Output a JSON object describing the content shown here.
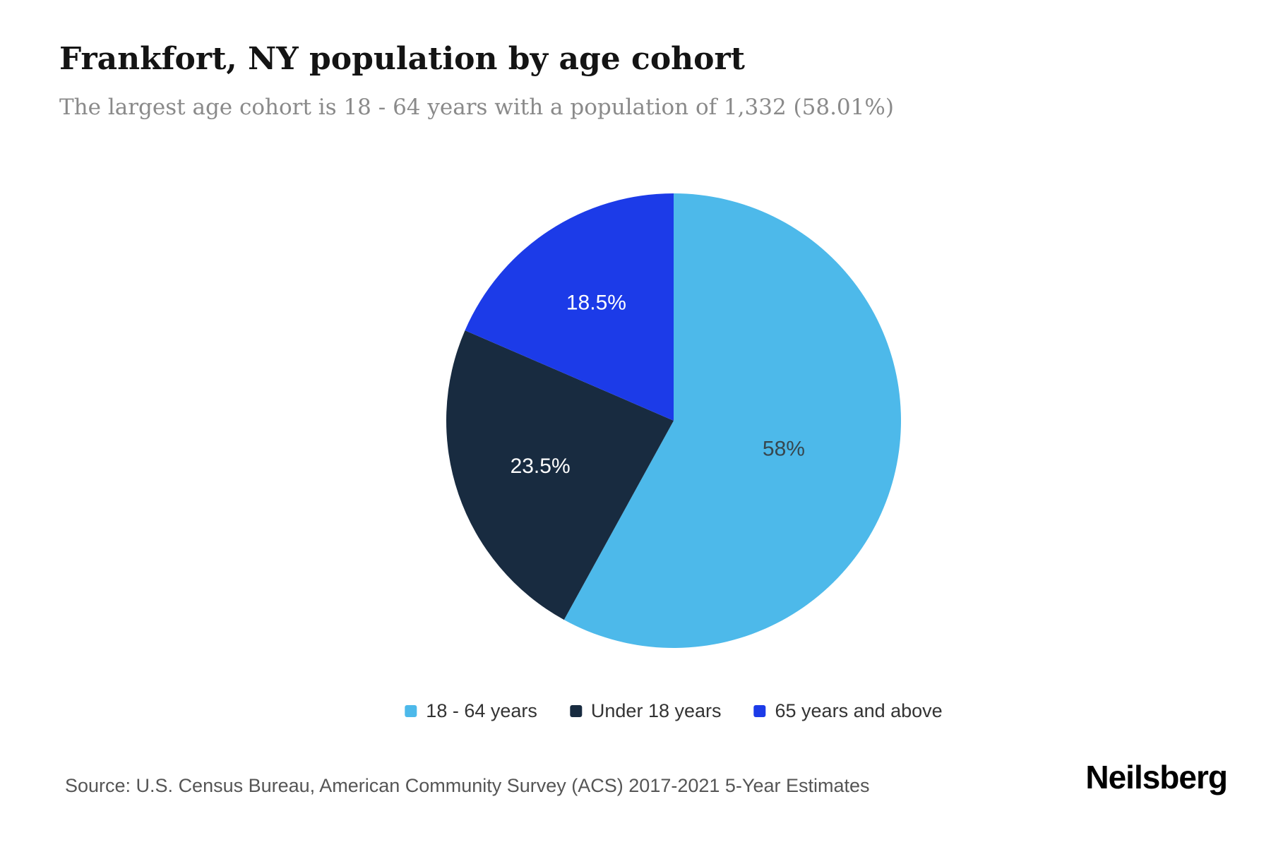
{
  "header": {
    "title": "Frankfort, NY population by age cohort",
    "subtitle": "The largest age cohort is 18 - 64 years with a population of 1,332 (58.01%)"
  },
  "chart_data": {
    "type": "pie",
    "title": "Frankfort, NY population by age cohort",
    "legend_position": "bottom",
    "start_angle_deg": 0,
    "direction": "clockwise",
    "slices": [
      {
        "label": "18 - 64 years",
        "value": 58.01,
        "display": "58%",
        "color": "#4DB9EA",
        "label_color": "#37474f"
      },
      {
        "label": "Under 18 years",
        "value": 23.5,
        "display": "23.5%",
        "color": "#182B40",
        "label_color": "#ffffff"
      },
      {
        "label": "65 years and above",
        "value": 18.5,
        "display": "18.5%",
        "color": "#1C3BE8",
        "label_color": "#ffffff"
      }
    ]
  },
  "footer": {
    "source": "Source: U.S. Census Bureau, American Community Survey (ACS) 2017-2021 5-Year Estimates",
    "brand": "Neilsberg"
  }
}
